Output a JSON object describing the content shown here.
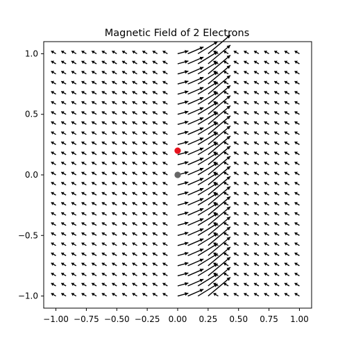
{
  "chart_data": {
    "type": "quiver",
    "title": "Magnetic Field of 2 Electrons",
    "xlabel": "",
    "ylabel": "",
    "xlim": [
      -1.1,
      1.1
    ],
    "ylim": [
      -1.1,
      1.1
    ],
    "x_ticks": [
      "−1.00",
      "−0.75",
      "−0.50",
      "−0.25",
      "0.00",
      "0.25",
      "0.50",
      "0.75",
      "1.00"
    ],
    "x_tick_values": [
      -1.0,
      -0.75,
      -0.5,
      -0.25,
      0.0,
      0.25,
      0.5,
      0.75,
      1.0
    ],
    "y_ticks": [
      "−1.0",
      "−0.5",
      "0.0",
      "0.5",
      "1.0"
    ],
    "y_tick_values": [
      -1.0,
      -0.5,
      0.0,
      0.5,
      1.0
    ],
    "grid": false,
    "field": {
      "x_range": [
        -1.0,
        1.0
      ],
      "y_range": [
        -1.0,
        1.0
      ],
      "points_per_axis": 25,
      "arrow_color": "#000000"
    },
    "charges": [
      {
        "x": 0.0,
        "y": 0.2,
        "color": "#e8121d"
      },
      {
        "x": 0.0,
        "y": 0.0,
        "color": "#666666"
      }
    ]
  }
}
